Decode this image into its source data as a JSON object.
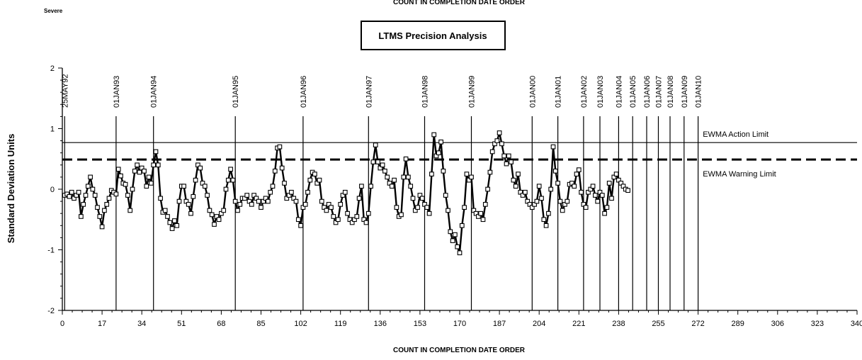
{
  "chart_data": {
    "type": "line",
    "title": "LTMS Precision Analysis",
    "top_title": "COUNT IN COMPLETION DATE ORDER",
    "corner_label": "Severe",
    "xlabel": "COUNT IN COMPLETION DATE ORDER",
    "ylabel": "Standard Deviation Units",
    "xlim": [
      0,
      340
    ],
    "ylim": [
      -2,
      2
    ],
    "x_ticks": [
      0,
      17,
      34,
      51,
      68,
      85,
      102,
      119,
      136,
      153,
      170,
      187,
      204,
      221,
      238,
      255,
      272,
      289,
      306,
      323,
      340
    ],
    "y_ticks": [
      -2,
      -1,
      0,
      1,
      2
    ],
    "reference_lines": [
      {
        "label": "EWMA Action Limit",
        "value": 0.77,
        "style": "solid"
      },
      {
        "label": "EWMA Warning Limit",
        "value": 0.49,
        "style": "dashed"
      }
    ],
    "date_markers": [
      {
        "label": "25MAY92",
        "x": 1
      },
      {
        "label": "01JAN93",
        "x": 23
      },
      {
        "label": "01JAN94",
        "x": 39
      },
      {
        "label": "01JAN95",
        "x": 74
      },
      {
        "label": "01JAN96",
        "x": 103
      },
      {
        "label": "01JAN97",
        "x": 131
      },
      {
        "label": "01JAN98",
        "x": 155
      },
      {
        "label": "01JAN99",
        "x": 175
      },
      {
        "label": "01JAN00",
        "x": 201
      },
      {
        "label": "01JAN01",
        "x": 212
      },
      {
        "label": "01JAN02",
        "x": 223
      },
      {
        "label": "01JAN03",
        "x": 230
      },
      {
        "label": "01JAN04",
        "x": 238
      },
      {
        "label": "01JAN05",
        "x": 244
      },
      {
        "label": "01JAN06",
        "x": 250
      },
      {
        "label": "01JAN07",
        "x": 255
      },
      {
        "label": "01JAN08",
        "x": 260
      },
      {
        "label": "01JAN09",
        "x": 266
      },
      {
        "label": "01JAN10",
        "x": 272
      }
    ],
    "series": [
      {
        "values": [
          -0.1,
          -0.08,
          -0.12,
          -0.05,
          -0.15,
          -0.1,
          -0.05,
          -0.45,
          -0.25,
          -0.1,
          0.05,
          0.2,
          0.0,
          -0.1,
          -0.3,
          -0.45,
          -0.62,
          -0.35,
          -0.25,
          -0.15,
          -0.02,
          -0.05,
          -0.08,
          0.33,
          0.22,
          0.1,
          0.08,
          -0.1,
          -0.35,
          0.0,
          0.3,
          0.4,
          0.28,
          0.35,
          0.3,
          0.05,
          0.2,
          0.1,
          0.4,
          0.62,
          0.4,
          -0.15,
          -0.38,
          -0.35,
          -0.45,
          -0.55,
          -0.65,
          -0.52,
          -0.6,
          -0.2,
          0.05,
          0.05,
          -0.2,
          -0.25,
          -0.4,
          -0.12,
          0.15,
          0.4,
          0.35,
          0.1,
          0.05,
          -0.1,
          -0.35,
          -0.42,
          -0.58,
          -0.45,
          -0.5,
          -0.4,
          -0.35,
          0.0,
          0.15,
          0.33,
          0.15,
          -0.2,
          -0.35,
          -0.25,
          -0.15,
          -0.15,
          -0.1,
          -0.2,
          -0.25,
          -0.1,
          -0.15,
          -0.2,
          -0.3,
          -0.2,
          -0.15,
          -0.2,
          -0.05,
          0.05,
          0.3,
          0.68,
          0.7,
          0.35,
          0.1,
          -0.15,
          -0.1,
          -0.05,
          -0.15,
          -0.2,
          -0.5,
          -0.6,
          -0.3,
          -0.25,
          -0.05,
          0.15,
          0.28,
          0.25,
          0.1,
          0.15,
          -0.2,
          -0.3,
          -0.35,
          -0.25,
          -0.3,
          -0.45,
          -0.55,
          -0.5,
          -0.25,
          -0.1,
          -0.05,
          -0.4,
          -0.5,
          -0.55,
          -0.5,
          -0.45,
          -0.15,
          0.05,
          -0.5,
          -0.55,
          -0.4,
          0.05,
          0.45,
          0.73,
          0.45,
          0.35,
          0.4,
          0.3,
          0.2,
          0.1,
          0.05,
          0.15,
          -0.3,
          -0.45,
          -0.42,
          0.2,
          0.5,
          0.2,
          0.05,
          -0.15,
          -0.35,
          -0.3,
          -0.1,
          -0.15,
          -0.25,
          -0.3,
          -0.4,
          0.25,
          0.9,
          0.55,
          0.6,
          0.78,
          0.3,
          -0.1,
          -0.35,
          -0.7,
          -0.85,
          -0.75,
          -0.95,
          -1.05,
          -0.6,
          -0.3,
          0.25,
          0.15,
          0.2,
          -0.35,
          -0.4,
          -0.45,
          -0.4,
          -0.5,
          -0.25,
          0.0,
          0.28,
          0.62,
          0.75,
          0.8,
          0.93,
          0.75,
          0.55,
          0.42,
          0.55,
          0.45,
          0.15,
          0.05,
          0.25,
          -0.05,
          -0.1,
          -0.05,
          -0.2,
          -0.25,
          -0.3,
          -0.25,
          -0.2,
          0.05,
          -0.15,
          -0.5,
          -0.6,
          -0.4,
          0.0,
          0.7,
          0.3,
          0.1,
          -0.2,
          -0.35,
          -0.25,
          -0.2,
          0.08,
          0.1,
          0.05,
          0.25,
          0.32,
          -0.05,
          -0.25,
          -0.3,
          -0.05,
          0.0,
          0.05,
          -0.1,
          -0.2,
          -0.05,
          -0.1,
          -0.4,
          -0.3,
          0.1,
          -0.15,
          0.2,
          0.25,
          0.15,
          0.1,
          0.05,
          0.0,
          -0.02
        ]
      }
    ],
    "grid": false,
    "legend": "none"
  }
}
